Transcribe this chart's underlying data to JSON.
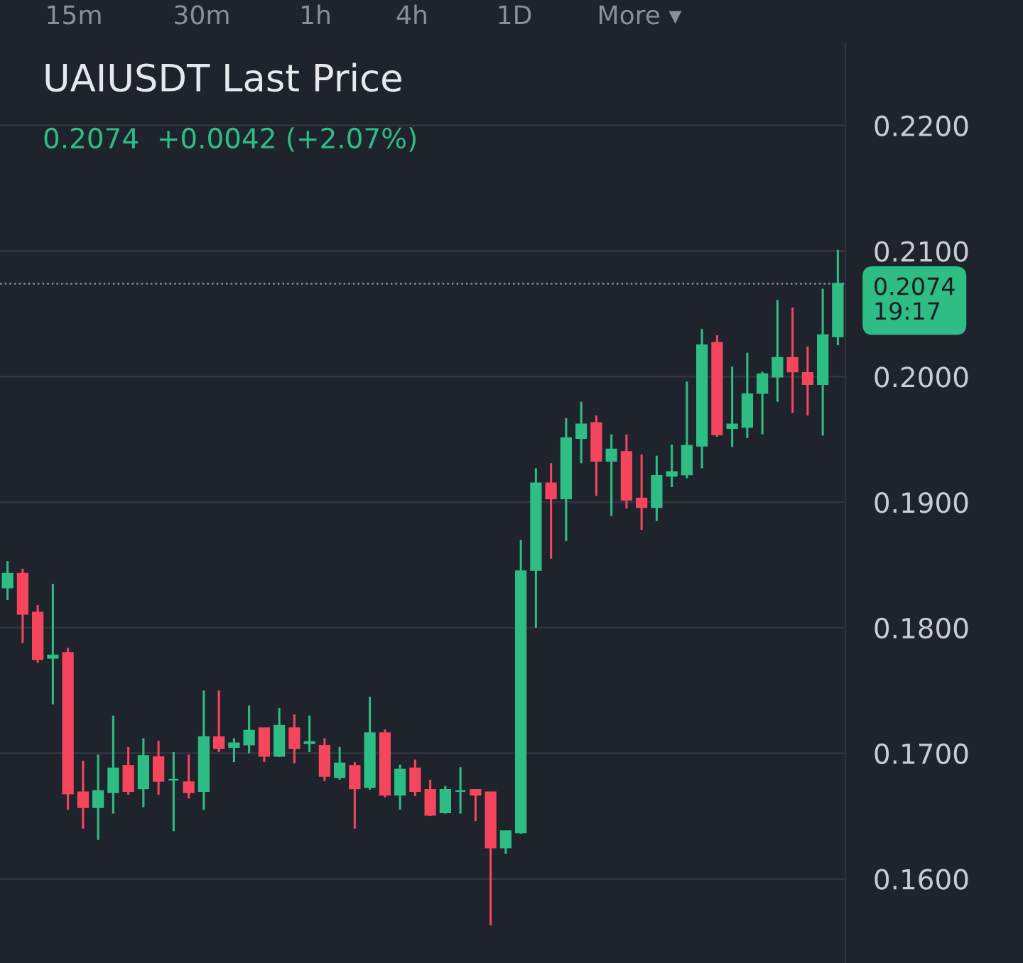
{
  "chart_data": {
    "type": "candlestick",
    "title": "UAIUSDT Last Price",
    "subtitle": "0.2074  +0.0042 (+2.07%)",
    "annotations": [
      "15m",
      "30m",
      "1h",
      "4h",
      "1D",
      "More ▾"
    ],
    "categories": [
      null,
      null,
      null,
      null,
      null,
      null,
      null,
      null,
      null,
      null,
      null,
      null,
      null,
      null,
      null,
      null,
      null,
      null,
      null,
      null,
      null,
      null,
      null,
      null,
      null,
      null,
      null,
      null,
      null,
      null,
      null,
      null,
      null,
      null,
      null,
      null,
      null,
      null,
      null,
      null,
      null,
      null,
      null,
      null,
      null,
      null,
      null,
      null,
      null,
      null,
      null,
      null,
      null,
      null,
      null,
      null
    ],
    "ohlc": [
      [
        0.1832,
        0.1853,
        0.1822,
        0.1843
      ],
      [
        0.1843,
        0.1847,
        0.1788,
        0.1811
      ],
      [
        0.1812,
        0.1818,
        0.1772,
        0.1775
      ],
      [
        0.1776,
        0.1835,
        0.1739,
        0.1778
      ],
      [
        0.178,
        0.1784,
        0.1655,
        0.1668
      ],
      [
        0.1669,
        0.1694,
        0.164,
        0.1657
      ],
      [
        0.1657,
        0.1699,
        0.1631,
        0.167
      ],
      [
        0.1669,
        0.173,
        0.1652,
        0.1688
      ],
      [
        0.169,
        0.1705,
        0.1667,
        0.167
      ],
      [
        0.1672,
        0.1712,
        0.1657,
        0.1698
      ],
      [
        0.1697,
        0.171,
        0.1667,
        0.1678
      ],
      [
        0.1679,
        0.1701,
        0.1638,
        0.1679
      ],
      [
        0.1677,
        0.1699,
        0.1664,
        0.1669
      ],
      [
        0.167,
        0.175,
        0.1655,
        0.1713
      ],
      [
        0.1713,
        0.175,
        0.1701,
        0.1704
      ],
      [
        0.1705,
        0.1712,
        0.1693,
        0.1708
      ],
      [
        0.1707,
        0.1738,
        0.17,
        0.1718
      ],
      [
        0.172,
        0.172,
        0.1693,
        0.1698
      ],
      [
        0.1698,
        0.1736,
        0.1697,
        0.1722
      ],
      [
        0.172,
        0.1731,
        0.1692,
        0.1704
      ],
      [
        0.1708,
        0.173,
        0.1701,
        0.1709
      ],
      [
        0.1706,
        0.1712,
        0.1678,
        0.1682
      ],
      [
        0.1681,
        0.1705,
        0.1679,
        0.1692
      ],
      [
        0.169,
        0.1693,
        0.164,
        0.1672
      ],
      [
        0.1673,
        0.1745,
        0.1671,
        0.1716
      ],
      [
        0.1716,
        0.1719,
        0.1665,
        0.1667
      ],
      [
        0.1667,
        0.1691,
        0.1655,
        0.1687
      ],
      [
        0.1688,
        0.1695,
        0.1666,
        0.167
      ],
      [
        0.1671,
        0.1679,
        0.165,
        0.1651
      ],
      [
        0.1653,
        0.1674,
        0.1652,
        0.1671
      ],
      [
        0.167,
        0.1689,
        0.1652,
        0.167
      ],
      [
        0.1671,
        0.1671,
        0.1646,
        0.1667
      ],
      [
        0.1669,
        0.1669,
        0.1563,
        0.1625
      ],
      [
        0.1625,
        0.1638,
        0.162,
        0.1638
      ],
      [
        0.1637,
        0.187,
        0.1636,
        0.1845
      ],
      [
        0.1846,
        0.1927,
        0.18,
        0.1915
      ],
      [
        0.1915,
        0.1931,
        0.1855,
        0.1903
      ],
      [
        0.1903,
        0.1967,
        0.1869,
        0.1951
      ],
      [
        0.1951,
        0.198,
        0.1931,
        0.1962
      ],
      [
        0.1963,
        0.1969,
        0.1905,
        0.1933
      ],
      [
        0.1933,
        0.1954,
        0.1889,
        0.1942
      ],
      [
        0.194,
        0.1954,
        0.1895,
        0.1902
      ],
      [
        0.1903,
        0.1938,
        0.1878,
        0.1896
      ],
      [
        0.1896,
        0.1937,
        0.1885,
        0.1921
      ],
      [
        0.1921,
        0.1946,
        0.1912,
        0.1924
      ],
      [
        0.1922,
        0.1996,
        0.1919,
        0.1945
      ],
      [
        0.1945,
        0.2038,
        0.1927,
        0.2025
      ],
      [
        0.2027,
        0.2033,
        0.1952,
        0.1954
      ],
      [
        0.1959,
        0.2008,
        0.1944,
        0.1962
      ],
      [
        0.196,
        0.2019,
        0.1951,
        0.1986
      ],
      [
        0.1987,
        0.2004,
        0.1954,
        0.2002
      ],
      [
        0.2,
        0.2061,
        0.198,
        0.2015
      ],
      [
        0.2015,
        0.2055,
        0.1971,
        0.2004
      ],
      [
        0.2003,
        0.2024,
        0.1969,
        0.1994
      ],
      [
        0.1994,
        0.207,
        0.1953,
        0.2033
      ],
      [
        0.2032,
        0.2101,
        0.2025,
        0.2074
      ]
    ],
    "colors": [
      "#2ebd85",
      "#f6465d",
      "#f6465d",
      "#2ebd85",
      "#f6465d",
      "#f6465d",
      "#2ebd85",
      "#2ebd85",
      "#f6465d",
      "#2ebd85",
      "#f6465d",
      "#2ebd85",
      "#f6465d",
      "#2ebd85",
      "#f6465d",
      "#2ebd85",
      "#2ebd85",
      "#f6465d",
      "#2ebd85",
      "#f6465d",
      "#2ebd85",
      "#f6465d",
      "#2ebd85",
      "#f6465d",
      "#2ebd85",
      "#f6465d",
      "#2ebd85",
      "#f6465d",
      "#f6465d",
      "#2ebd85",
      "#2ebd85",
      "#f6465d",
      "#f6465d",
      "#2ebd85",
      "#2ebd85",
      "#2ebd85",
      "#f6465d",
      "#2ebd85",
      "#2ebd85",
      "#f6465d",
      "#2ebd85",
      "#f6465d",
      "#f6465d",
      "#2ebd85",
      "#2ebd85",
      "#2ebd85",
      "#2ebd85",
      "#f6465d",
      "#2ebd85",
      "#2ebd85",
      "#2ebd85",
      "#2ebd85",
      "#f6465d",
      "#f6465d",
      "#2ebd85",
      "#2ebd85"
    ],
    "ylim": [
      0.1533,
      0.2266
    ],
    "yticks": [
      {
        "value": 0.16,
        "label": "0.1600"
      },
      {
        "value": 0.17,
        "label": "0.1700"
      },
      {
        "value": 0.18,
        "label": "0.1800"
      },
      {
        "value": 0.19,
        "label": "0.1900"
      },
      {
        "value": 0.2,
        "label": "0.2000"
      },
      {
        "value": 0.21,
        "label": "0.2100"
      },
      {
        "value": 0.22,
        "label": "0.2200"
      }
    ],
    "grid": "y",
    "ref_lines": [
      {
        "axis": "y",
        "value": 0.2074,
        "label": "0.2074\n19:17",
        "color": "#8a8f99",
        "line_style": "dotted"
      }
    ]
  }
}
